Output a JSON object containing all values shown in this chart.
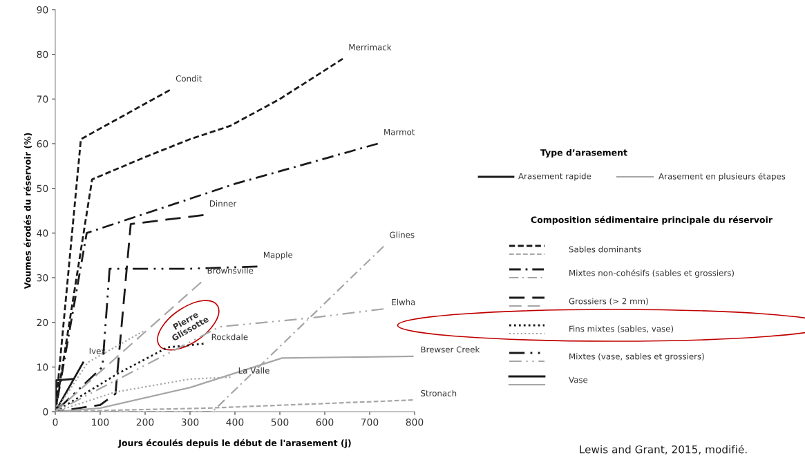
{
  "chart_data": {
    "type": "line",
    "xlabel": "Jours écoulés depuis le début de l'arasement (j)",
    "ylabel": "Voumes érodés du réservoir (%)",
    "xlim": [
      0,
      800
    ],
    "xticks": [
      0,
      100,
      200,
      300,
      400,
      500,
      600,
      700,
      800
    ],
    "ylim": [
      0,
      90
    ],
    "yticks": [
      0,
      10,
      20,
      30,
      40,
      50,
      60,
      70,
      80,
      90
    ],
    "grid": false,
    "legend": "right",
    "marker": "none",
    "series": [
      {
        "name": "Condit",
        "color": "#1a1a1a",
        "line_style": "dashed",
        "x": [
          0,
          57,
          255
        ],
        "values": [
          0,
          61,
          72
        ]
      },
      {
        "name": "Merrimack",
        "color": "#1a1a1a",
        "line_style": "dashed",
        "x": [
          0,
          82,
          200,
          300,
          390,
          500,
          640
        ],
        "values": [
          0,
          52,
          57,
          61,
          64,
          70,
          79
        ]
      },
      {
        "name": "Marmot",
        "color": "#1a1a1a",
        "line_style": "dashdot",
        "x": [
          0,
          70,
          400,
          718
        ],
        "values": [
          0,
          40,
          51,
          60
        ]
      },
      {
        "name": "Dinner",
        "color": "#1a1a1a",
        "line_style": "longdash",
        "x": [
          0,
          100,
          134,
          168,
          330
        ],
        "values": [
          0,
          1.5,
          4,
          42,
          44
        ]
      },
      {
        "name": "Mapple",
        "color": "#1a1a1a",
        "line_style": "dashdotdot",
        "x": [
          0,
          105,
          121,
          300,
          450
        ],
        "values": [
          0,
          10,
          32,
          32,
          32.5
        ]
      },
      {
        "name": "Rockdale",
        "color": "#1a1a1a",
        "line_style": "dotted",
        "x": [
          0,
          139,
          250,
          330
        ],
        "values": [
          0,
          8.5,
          14.4,
          15.2
        ]
      },
      {
        "name": "Ivex",
        "color": "#1a1a1a",
        "line_style": "solid",
        "x": [
          0,
          62
        ],
        "values": [
          0,
          11
        ]
      },
      {
        "color": "#1a1a1a",
        "line_style": "solid",
        "x": [
          0,
          2,
          38
        ],
        "values": [
          0,
          7,
          7.3
        ]
      },
      {
        "name": "Brownsville",
        "color": "#a6a6a6",
        "line_style": "longdash",
        "x": [
          0,
          325
        ],
        "values": [
          0,
          29
        ]
      },
      {
        "color": "#a6a6a6",
        "line_style": "dotted",
        "x": [
          0,
          72,
          196
        ],
        "values": [
          0,
          11,
          18
        ]
      },
      {
        "name": "Glines",
        "color": "#a6a6a6",
        "line_style": "dashdot",
        "x": [
          0,
          350,
          731
        ],
        "values": [
          0,
          0,
          37
        ]
      },
      {
        "name": "Elwha",
        "color": "#a6a6a6",
        "line_style": "dashdotdot",
        "x": [
          0,
          366,
          571,
          731
        ],
        "values": [
          0,
          19,
          21,
          23
        ]
      },
      {
        "name": "La Valle",
        "color": "#a6a6a6",
        "line_style": "dotted",
        "x": [
          0,
          134,
          300,
          390
        ],
        "values": [
          0,
          4.4,
          7.3,
          7.7
        ]
      },
      {
        "name": "Brewser Creek",
        "color": "#a6a6a6",
        "line_style": "solid",
        "x": [
          0,
          100,
          300,
          505,
          796
        ],
        "values": [
          0,
          0.8,
          5.4,
          12,
          12.4
        ]
      },
      {
        "name": "Stronach",
        "color": "#a6a6a6",
        "line_style": "dashed",
        "x": [
          0,
          340,
          796
        ],
        "values": [
          0,
          0.8,
          2.6
        ]
      }
    ],
    "annotations": [
      "Type d’arasement",
      "Arasement rapide",
      "Arasement en plusieurs étapes",
      "Composition sédimentaire principale du réservoir",
      "Sables dominants",
      "Mixtes non-cohésifs (sables et grossiers)",
      "Grossiers (> 2 mm)",
      "Fins mixtes (sables, vase)",
      "Mixtes (vase, sables et grossiers)",
      "Vase",
      "Lewis and Grant, 2015, modifié.",
      "Pierre Glissotte"
    ]
  }
}
